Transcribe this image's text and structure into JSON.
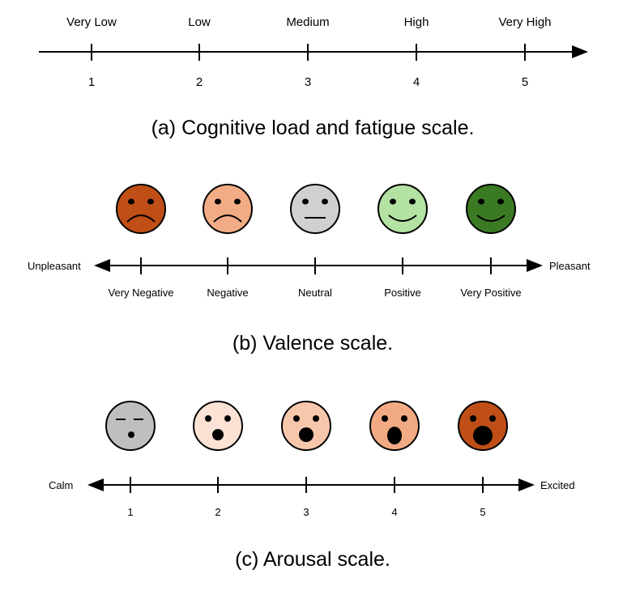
{
  "cognitive": {
    "levels": [
      "Very Low",
      "Low",
      "Medium",
      "High",
      "Very High"
    ],
    "numbers": [
      "1",
      "2",
      "3",
      "4",
      "5"
    ],
    "caption": "(a) Cognitive load and fatigue scale."
  },
  "valence": {
    "left_label": "Unpleasant",
    "right_label": "Pleasant",
    "levels": [
      "Very Negative",
      "Negative",
      "Neutral",
      "Positive",
      "Very Positive"
    ],
    "face_colors": [
      "#BF4F16",
      "#F2AC85",
      "#D0D0D0",
      "#B3E2A2",
      "#3A7A23"
    ],
    "mouths": [
      "frown",
      "frown",
      "flat",
      "smile",
      "smile"
    ],
    "caption": "(b) Valence scale."
  },
  "arousal": {
    "left_label": "Calm",
    "right_label": "Excited",
    "numbers": [
      "1",
      "2",
      "3",
      "4",
      "5"
    ],
    "face_colors": [
      "#BFBFBF",
      "#FBE2D5",
      "#F7C7AC",
      "#F2AA84",
      "#BF4F16"
    ],
    "caption": "(c) Arousal scale."
  }
}
